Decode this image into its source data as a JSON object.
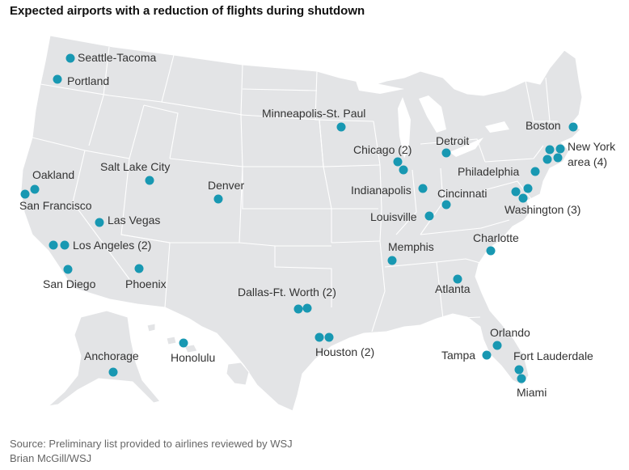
{
  "title": "Expected airports with a reduction of flights during shutdown",
  "footer": {
    "source": "Source: Preliminary list provided to airlines reviewed by WSJ",
    "credit": "Brian McGill/WSJ"
  },
  "colors": {
    "marker": "#1898b2",
    "land": "#e3e4e6",
    "border": "#ffffff"
  },
  "airports": [
    {
      "id": "seattle",
      "label": "Seattle-Tacoma",
      "count": 1
    },
    {
      "id": "portland",
      "label": "Portland",
      "count": 1
    },
    {
      "id": "oakland",
      "label": "Oakland",
      "count": 1
    },
    {
      "id": "san-francisco",
      "label": "San Francisco",
      "count": 1
    },
    {
      "id": "las-vegas",
      "label": "Las Vegas",
      "count": 1
    },
    {
      "id": "los-angeles",
      "label": "Los Angeles (2)",
      "count": 2
    },
    {
      "id": "san-diego",
      "label": "San Diego",
      "count": 1
    },
    {
      "id": "phoenix",
      "label": "Phoenix",
      "count": 1
    },
    {
      "id": "salt-lake-city",
      "label": "Salt Lake City",
      "count": 1
    },
    {
      "id": "denver",
      "label": "Denver",
      "count": 1
    },
    {
      "id": "minneapolis",
      "label": "Minneapolis-St. Paul",
      "count": 1
    },
    {
      "id": "chicago",
      "label": "Chicago (2)",
      "count": 2
    },
    {
      "id": "detroit",
      "label": "Detroit",
      "count": 1
    },
    {
      "id": "indianapolis",
      "label": "Indianapolis",
      "count": 1
    },
    {
      "id": "cincinnati",
      "label": "Cincinnati",
      "count": 1
    },
    {
      "id": "louisville",
      "label": "Louisville",
      "count": 1
    },
    {
      "id": "memphis",
      "label": "Memphis",
      "count": 1
    },
    {
      "id": "dallas",
      "label": "Dallas-Ft. Worth (2)",
      "count": 2
    },
    {
      "id": "houston",
      "label": "Houston (2)",
      "count": 2
    },
    {
      "id": "atlanta",
      "label": "Atlanta",
      "count": 1
    },
    {
      "id": "charlotte",
      "label": "Charlotte",
      "count": 1
    },
    {
      "id": "orlando",
      "label": "Orlando",
      "count": 1
    },
    {
      "id": "tampa",
      "label": "Tampa",
      "count": 1
    },
    {
      "id": "fort-lauderdale",
      "label": "Fort Lauderdale",
      "count": 1
    },
    {
      "id": "miami",
      "label": "Miami",
      "count": 1
    },
    {
      "id": "boston",
      "label": "Boston",
      "count": 1
    },
    {
      "id": "new-york",
      "label_line1": "New York",
      "label_line2": "area (4)",
      "count": 4
    },
    {
      "id": "philadelphia",
      "label": "Philadelphia",
      "count": 1
    },
    {
      "id": "washington",
      "label": "Washington (3)",
      "count": 3
    },
    {
      "id": "anchorage",
      "label": "Anchorage",
      "count": 1
    },
    {
      "id": "honolulu",
      "label": "Honolulu",
      "count": 1
    }
  ]
}
